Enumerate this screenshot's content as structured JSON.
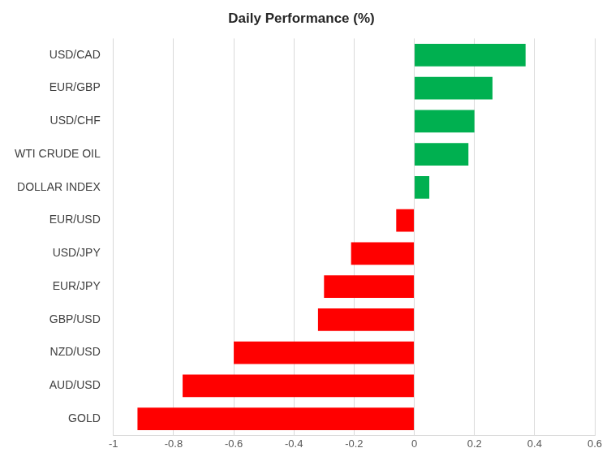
{
  "chart_data": {
    "type": "bar",
    "orientation": "horizontal",
    "title": "Daily Performance (%)",
    "categories": [
      "USD/CAD",
      "EUR/GBP",
      "USD/CHF",
      "WTI CRUDE OIL",
      "DOLLAR INDEX",
      "EUR/USD",
      "USD/JPY",
      "EUR/JPY",
      "GBP/USD",
      "NZD/USD",
      "AUD/USD",
      "GOLD"
    ],
    "values": [
      0.37,
      0.26,
      0.2,
      0.18,
      0.05,
      -0.06,
      -0.21,
      -0.3,
      -0.32,
      -0.6,
      -0.77,
      -0.92
    ],
    "colors": [
      "#00b050",
      "#00b050",
      "#00b050",
      "#00b050",
      "#00b050",
      "#ff0000",
      "#ff0000",
      "#ff0000",
      "#ff0000",
      "#ff0000",
      "#ff0000",
      "#ff0000"
    ],
    "xlim": [
      -1,
      0.6
    ],
    "xticks": [
      -1,
      -0.8,
      -0.6,
      -0.4,
      -0.2,
      0,
      0.2,
      0.4,
      0.6
    ],
    "grid": true
  }
}
